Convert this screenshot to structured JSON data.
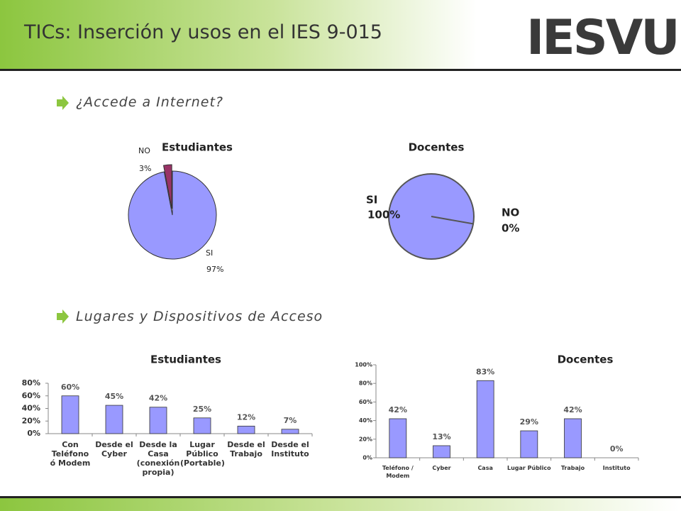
{
  "header": {
    "title": "TICs: Inserción y usos en el IES 9-015",
    "logo": "IESVU"
  },
  "bullets": [
    "¿Accede a Internet?",
    "Lugares y Dispositivos de Acceso"
  ],
  "chart_data": [
    {
      "type": "pie",
      "title": "Estudiantes",
      "categories": [
        "NO",
        "SI"
      ],
      "values": [
        3,
        97
      ],
      "value_labels": [
        "3%",
        "97%"
      ],
      "colors": [
        "#993366",
        "#9999ff"
      ]
    },
    {
      "type": "pie",
      "title": "Docentes",
      "categories": [
        "SI",
        "NO"
      ],
      "values": [
        100,
        0
      ],
      "value_labels": [
        "100%",
        "0%"
      ],
      "colors": [
        "#9999ff",
        "#993366"
      ]
    },
    {
      "type": "bar",
      "title": "Estudiantes",
      "categories": [
        "Con Teléfono ó Modem",
        "Desde el Cyber",
        "Desde la Casa (conexión propia)",
        "Lugar Público (Portable)",
        "Desde el Trabajo",
        "Desde el Instituto"
      ],
      "values": [
        60,
        45,
        42,
        25,
        12,
        7
      ],
      "value_labels": [
        "60%",
        "45%",
        "42%",
        "25%",
        "12%",
        "7%"
      ],
      "color": "#9999ff",
      "ylim": [
        0,
        80
      ],
      "yticks": [
        {
          "value": 0,
          "label": "0%"
        },
        {
          "value": 20,
          "label": "20%"
        },
        {
          "value": 40,
          "label": "40%"
        },
        {
          "value": 60,
          "label": "60%"
        },
        {
          "value": 80,
          "label": "80%"
        }
      ]
    },
    {
      "type": "bar",
      "title": "Docentes",
      "categories": [
        "Teléfono / Modem",
        "Cyber",
        "Casa",
        "Lugar Público",
        "Trabajo",
        "Instituto"
      ],
      "values": [
        42,
        13,
        83,
        29,
        42,
        0
      ],
      "value_labels": [
        "42%",
        "13%",
        "83%",
        "29%",
        "42%",
        "0%"
      ],
      "color": "#9999ff",
      "ylim": [
        0,
        100
      ],
      "yticks": [
        {
          "value": 0,
          "label": "0%"
        },
        {
          "value": 20,
          "label": "20%"
        },
        {
          "value": 40,
          "label": "40%"
        },
        {
          "value": 60,
          "label": "60%"
        },
        {
          "value": 80,
          "label": "80%"
        },
        {
          "value": 100,
          "label": "100%"
        }
      ]
    }
  ]
}
